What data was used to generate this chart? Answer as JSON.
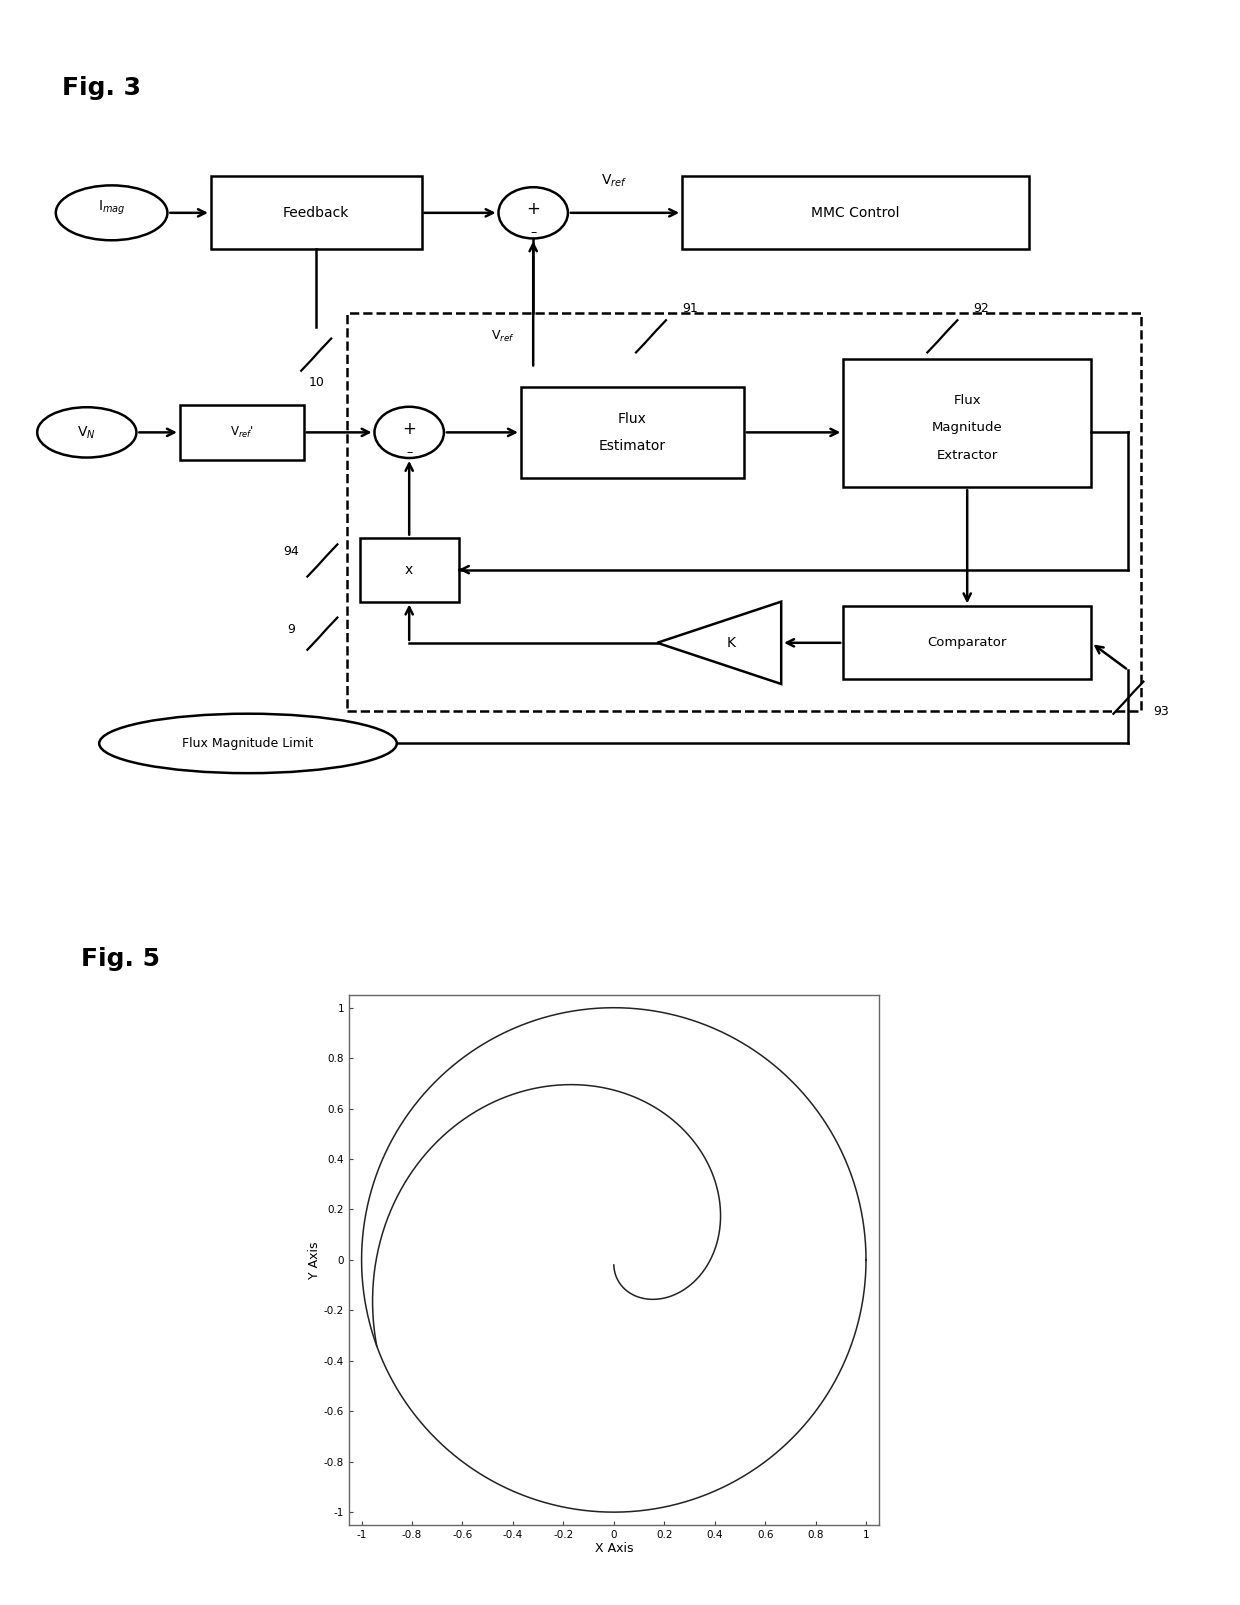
{
  "fig3_label": "Fig. 3",
  "fig5_label": "Fig. 5",
  "bg": "#ffffff",
  "xlabel": "X Axis",
  "ylabel": "Y Axis",
  "xtick_vals": [
    -1.0,
    -0.8,
    -0.6,
    -0.4,
    -0.2,
    0.0,
    0.2,
    0.4,
    0.6,
    0.8,
    1.0
  ],
  "xtick_labels": [
    "-1",
    "-0.8",
    "-0.6",
    "-0.4",
    "-0.2",
    "0",
    "0.2",
    "0.4",
    "0.6",
    "0.8",
    "1"
  ],
  "ytick_vals": [
    -1.0,
    -0.8,
    -0.6,
    -0.4,
    -0.2,
    0.0,
    0.2,
    0.4,
    0.6,
    0.8,
    1.0
  ],
  "ytick_labels": [
    "-1",
    "-0.8",
    "-0.6",
    "-0.4",
    "-0.2",
    "0",
    "0.2",
    "0.4",
    "0.6",
    "0.8",
    "1"
  ],
  "plot_bg": "#c0c0c0",
  "plot_inner_bg": "#ffffff"
}
